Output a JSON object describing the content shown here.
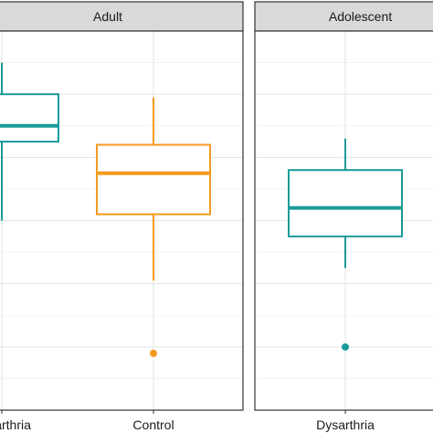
{
  "chart_data": {
    "type": "box",
    "facets": [
      {
        "label": "Adult",
        "categories": [
          "Dysarthria",
          "Control"
        ],
        "boxes": [
          {
            "category": "Dysarthria",
            "color": "#1a9a9a",
            "whisker_low": 2.0,
            "q1": 4.5,
            "median": 5.0,
            "q3": 6.0,
            "whisker_high": 7.0,
            "outliers": []
          },
          {
            "category": "Control",
            "color": "#f39a1e",
            "whisker_low": 0.1,
            "q1": 2.2,
            "median": 3.5,
            "q3": 4.4,
            "whisker_high": 5.9,
            "outliers": [
              -2.2
            ]
          }
        ]
      },
      {
        "label": "Adolescent",
        "categories": [
          "Dysarthria"
        ],
        "boxes": [
          {
            "category": "Dysarthria",
            "color": "#1a9a9a",
            "whisker_low": 0.5,
            "q1": 1.5,
            "median": 2.4,
            "q3": 3.6,
            "whisker_high": 4.6,
            "outliers": [
              -2.0
            ]
          }
        ]
      }
    ],
    "xlabel": "",
    "ylabel": "",
    "ylim": [
      -4,
      8
    ],
    "grid": true,
    "legend": "none"
  }
}
